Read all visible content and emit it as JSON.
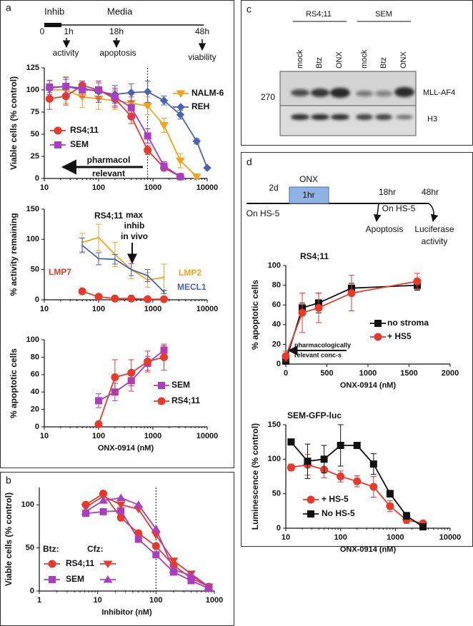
{
  "panels": [
    "a",
    "b",
    "c",
    "d"
  ],
  "timeline_a": {
    "bar_label": "Inhib",
    "media": "Media",
    "times": [
      "0",
      "1h",
      "18h",
      "48h"
    ],
    "events": [
      "activity",
      "apoptosis",
      "viability"
    ]
  },
  "timeline_d": {
    "start": "2d",
    "drug": "ONX",
    "duration": "1hr",
    "stroma1": "On HS-5",
    "t18": "18hr",
    "stroma2": "On  HS-5",
    "t48": "48hr",
    "event1": "Apoptosis",
    "event2": [
      "Luciferase",
      "activity"
    ]
  },
  "blot": {
    "groups": [
      "RS4;11",
      "SEM"
    ],
    "lanes": [
      "mock",
      "Btz",
      "ONX",
      "mock",
      "Btz",
      "ONX"
    ],
    "marker": "270",
    "bands": [
      "MLL-AF4",
      "H3"
    ]
  },
  "chart_data": [
    {
      "type": "line",
      "y_label": "Viable cells (% control)",
      "xlog": true,
      "x": [
        12.5,
        25,
        50,
        100,
        200,
        400,
        800,
        1600,
        3200,
        6400,
        10000
      ],
      "xlim": [
        10,
        10000
      ],
      "xticks": [
        10,
        100,
        1000,
        10000
      ],
      "ylim": [
        0,
        125
      ],
      "yticks": [
        0,
        25,
        50,
        75,
        100,
        125
      ],
      "vline": 800,
      "annotations": [
        "pharmacol",
        "relevant"
      ],
      "series": [
        {
          "name": "NALM-6",
          "color": "#f5a31a",
          "marker": "triangle-down",
          "values": [
            100,
            100,
            92,
            90,
            88,
            85,
            82,
            60,
            20,
            2,
            null
          ],
          "errors": [
            10,
            15,
            12,
            12,
            10,
            10,
            10,
            8,
            8,
            2,
            null
          ]
        },
        {
          "name": "REH",
          "color": "#4a63b0",
          "marker": "diamond",
          "values": [
            102,
            104,
            102,
            98,
            95,
            97,
            98,
            88,
            72,
            42,
            12
          ],
          "errors": [
            5,
            8,
            5,
            12,
            10,
            10,
            12,
            5,
            5,
            3,
            null
          ]
        },
        {
          "name": "RS4;11",
          "color": "#e8392a",
          "marker": "circle",
          "values": [
            90,
            93,
            105,
            100,
            90,
            70,
            32,
            12,
            2,
            null,
            null
          ],
          "errors": [
            12,
            10,
            5,
            8,
            10,
            8,
            5,
            3,
            2,
            null,
            null
          ]
        },
        {
          "name": "SEM",
          "color": "#a93fc0",
          "marker": "square",
          "values": [
            103,
            104,
            100,
            100,
            92,
            80,
            48,
            14,
            2,
            null,
            null
          ],
          "errors": [
            8,
            10,
            8,
            10,
            10,
            12,
            8,
            5,
            2,
            null,
            null
          ]
        }
      ]
    },
    {
      "type": "line",
      "title": "RS4;11",
      "y_label": "% activity remaining",
      "xlog": true,
      "x": [
        50,
        100,
        200,
        400,
        800,
        1600
      ],
      "xlim": [
        10,
        10000
      ],
      "xticks": [
        10,
        100,
        1000,
        10000
      ],
      "ylim": [
        0,
        150
      ],
      "yticks": [
        0,
        50,
        100,
        150
      ],
      "annotations": [
        "max",
        "inhib",
        "in vivo"
      ],
      "series": [
        {
          "name": "LMP7",
          "color": "#e8392a",
          "marker": "circle",
          "values": [
            14,
            5,
            2,
            2,
            1,
            1
          ]
        },
        {
          "name": "LMP2",
          "color": "#f5a31a",
          "marker": "none",
          "values": [
            95,
            103,
            75,
            50,
            33,
            37
          ],
          "errors": [
            15,
            22,
            20,
            15,
            12,
            22
          ]
        },
        {
          "name": "MECL1",
          "color": "#4a63b0",
          "marker": "none",
          "values": [
            90,
            68,
            67,
            50,
            40,
            13
          ],
          "errors": [
            12,
            10,
            8,
            10,
            10,
            3
          ]
        }
      ]
    },
    {
      "type": "line",
      "y_label": "% apoptotic cells",
      "x_label": "ONX-0914 (nM)",
      "xlog": true,
      "x": [
        100,
        200,
        400,
        800,
        1600
      ],
      "xlim": [
        10,
        10000
      ],
      "xticks": [
        10,
        100,
        1000,
        10000
      ],
      "ylim": [
        0,
        100
      ],
      "yticks": [
        0,
        20,
        40,
        60,
        80,
        100
      ],
      "series": [
        {
          "name": "SEM",
          "color": "#a93fc0",
          "marker": "square",
          "values": [
            30,
            40,
            53,
            73,
            88
          ],
          "errors": [
            8,
            10,
            12,
            8,
            5
          ]
        },
        {
          "name": "RS4;11",
          "color": "#e8392a",
          "marker": "circle",
          "values": [
            3,
            57,
            62,
            75,
            80
          ],
          "errors": [
            2,
            20,
            15,
            12,
            15
          ]
        }
      ]
    },
    {
      "type": "line",
      "y_label": "Viable cells (% control)",
      "x_label": "Inhibitor (nM)",
      "xlog": true,
      "x": [
        6.25,
        12.5,
        25,
        50,
        100,
        200,
        400,
        800
      ],
      "xlim": [
        1,
        1000
      ],
      "xticks": [
        1,
        10,
        100,
        1000
      ],
      "ylim": [
        0,
        120
      ],
      "yticks": [
        0,
        50,
        100
      ],
      "vline": 100,
      "series": [
        {
          "name": "RS4;11",
          "group": "Btz:",
          "color": "#e8392a",
          "marker": "circle",
          "values": [
            100,
            113,
            85,
            67,
            52,
            30,
            15,
            5
          ]
        },
        {
          "name": "SEM",
          "group": "Btz:",
          "color": "#a93fc0",
          "marker": "square",
          "values": [
            90,
            92,
            93,
            60,
            42,
            22,
            12,
            3
          ]
        },
        {
          "name": "RS4;11",
          "group": "Cfz:",
          "color": "#e8392a",
          "marker": "triangle-down",
          "values": [
            97,
            110,
            100,
            95,
            65,
            35,
            20,
            5
          ]
        },
        {
          "name": "SEM",
          "group": "Cfz:",
          "color": "#a93fc0",
          "marker": "triangle-up",
          "values": [
            92,
            105,
            108,
            100,
            72,
            25,
            18,
            5
          ]
        }
      ]
    },
    {
      "type": "line",
      "title": "RS4;11",
      "y_label": "% apoptotic cells",
      "x_label": "ONX-0914 (nM)",
      "xlog": false,
      "x": [
        0,
        200,
        400,
        800,
        1600
      ],
      "xlim": [
        0,
        2000
      ],
      "xticks": [
        0,
        500,
        1000,
        1500,
        2000
      ],
      "ylim": [
        0,
        100
      ],
      "yticks": [
        0,
        20,
        40,
        60,
        80,
        100
      ],
      "annotations": [
        "pharmacologically",
        "relevant conc-s"
      ],
      "series": [
        {
          "name": "no stroma",
          "color": "#111111",
          "marker": "square",
          "values": [
            3,
            57,
            62,
            77,
            80
          ],
          "errors": [
            2,
            5,
            10,
            5,
            5
          ]
        },
        {
          "name": "+ HS5",
          "color": "#e8392a",
          "marker": "circle",
          "values": [
            8,
            52,
            57,
            72,
            84
          ],
          "errors": [
            5,
            20,
            15,
            18,
            8
          ]
        }
      ]
    },
    {
      "type": "line",
      "title": "SEM-GFP-luc",
      "y_label": "Luminescence (% control)",
      "x_label": "ONX-0914 (nM)",
      "xlog": true,
      "x": [
        12.5,
        25,
        50,
        100,
        200,
        400,
        800,
        1600,
        3200
      ],
      "xlim": [
        10,
        10000
      ],
      "xticks": [
        10,
        100,
        1000,
        10000
      ],
      "ylim": [
        0,
        150
      ],
      "yticks": [
        0,
        50,
        100,
        150
      ],
      "series": [
        {
          "name": "+ HS-5",
          "color": "#e8392a",
          "marker": "circle",
          "values": [
            88,
            92,
            85,
            75,
            68,
            60,
            32,
            12,
            7
          ],
          "errors": [
            5,
            15,
            12,
            8,
            8,
            15,
            8,
            5,
            3
          ]
        },
        {
          "name": "No HS-5",
          "color": "#111111",
          "marker": "square",
          "values": [
            125,
            97,
            100,
            120,
            120,
            93,
            50,
            18,
            2
          ],
          "errors": [
            3,
            25,
            20,
            30,
            3,
            15,
            5,
            5,
            2
          ]
        }
      ]
    }
  ]
}
